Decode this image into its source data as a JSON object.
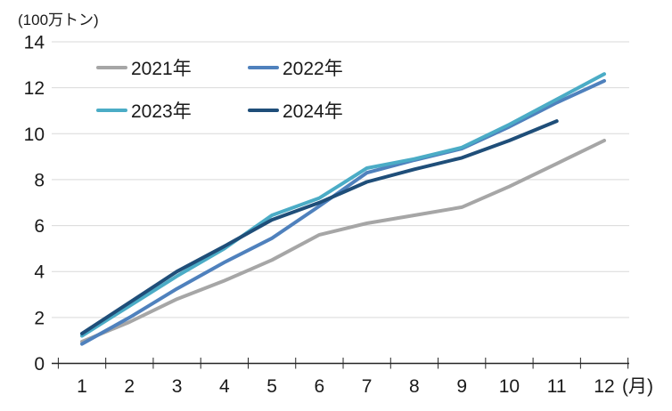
{
  "chart_data": {
    "type": "line",
    "title": "",
    "unit_label": "(100万トン)",
    "x_suffix_label": "(月)",
    "categories": [
      "1",
      "2",
      "3",
      "4",
      "5",
      "6",
      "7",
      "8",
      "9",
      "10",
      "11",
      "12"
    ],
    "yticks": [
      "0",
      "2",
      "4",
      "6",
      "8",
      "10",
      "12",
      "14"
    ],
    "ylim": [
      0,
      14
    ],
    "grid": "horizontal",
    "legend_position": "top-left-inside",
    "series": [
      {
        "name": "2021年",
        "color": "#A6A6A6",
        "values": [
          0.95,
          1.8,
          2.8,
          3.6,
          4.5,
          5.6,
          6.1,
          6.45,
          6.8,
          7.7,
          8.7,
          9.7
        ]
      },
      {
        "name": "2022年",
        "color": "#4F81BD",
        "values": [
          0.85,
          2.0,
          3.25,
          4.4,
          5.45,
          6.85,
          8.3,
          8.85,
          9.35,
          10.3,
          11.35,
          12.3
        ]
      },
      {
        "name": "2023年",
        "color": "#4BACC6",
        "values": [
          1.2,
          2.5,
          3.8,
          5.0,
          6.45,
          7.2,
          8.5,
          8.9,
          9.4,
          10.4,
          11.5,
          12.6
        ]
      },
      {
        "name": "2024年",
        "color": "#1F4E79",
        "values": [
          1.3,
          2.65,
          4.0,
          5.1,
          6.25,
          7.0,
          7.9,
          8.45,
          8.95,
          9.7,
          10.55
        ]
      }
    ],
    "colors": {
      "axis": "#262626",
      "gridline": "#D9D9D9",
      "text": "#1a1a1a"
    }
  }
}
